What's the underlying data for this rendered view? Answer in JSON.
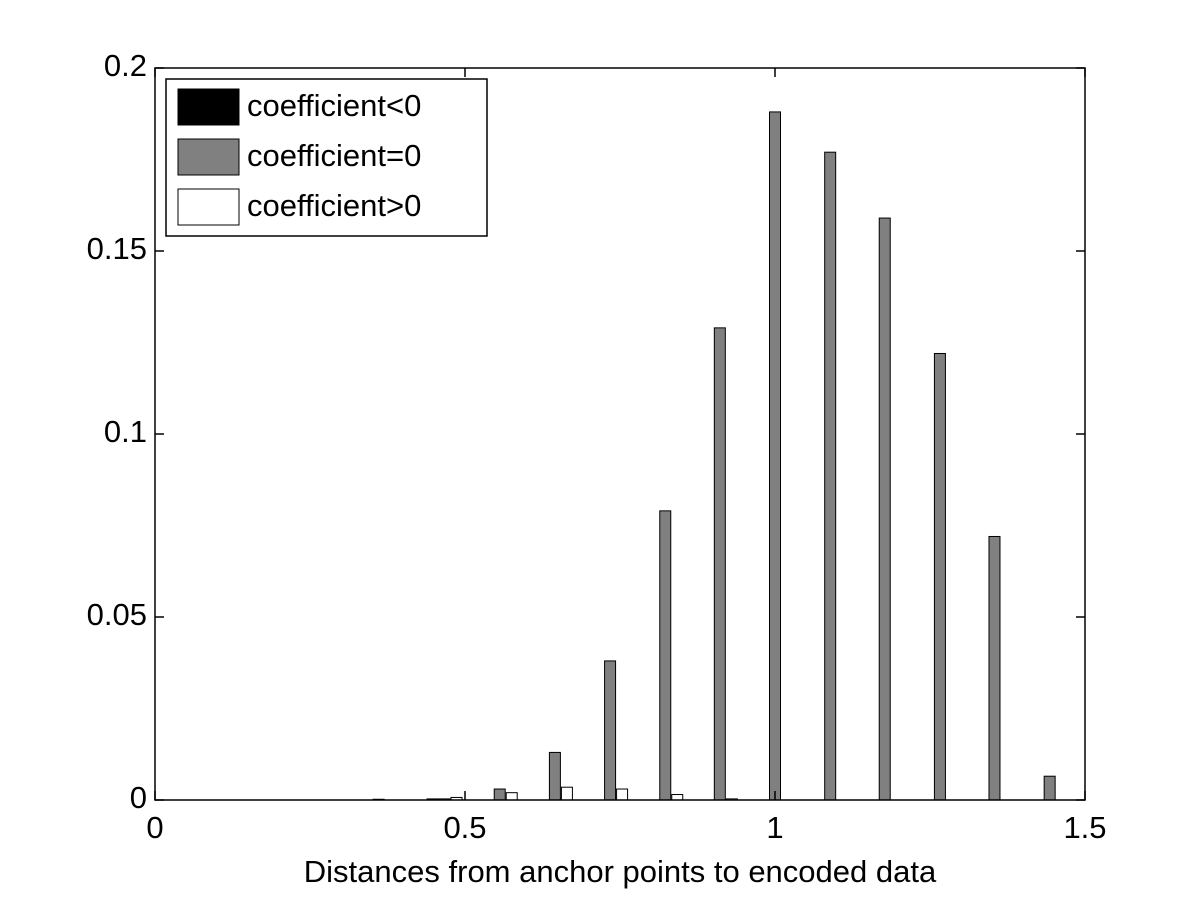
{
  "chart_data": {
    "type": "bar",
    "xlabel": "Distances from anchor points to encoded data",
    "x": [
      0.38,
      0.467,
      0.556,
      0.645,
      0.734,
      0.823,
      0.911,
      1.0,
      1.089,
      1.177,
      1.266,
      1.354,
      1.443
    ],
    "series": [
      {
        "name": "coefficient<0",
        "color": "#000000",
        "values": [
          0.0002,
          0.0003,
          0,
          0,
          0,
          0,
          0,
          0,
          0,
          0,
          0,
          0,
          0
        ]
      },
      {
        "name": "coefficient=0",
        "color": "#808080",
        "values": [
          0,
          0.0003,
          0.003,
          0.013,
          0.038,
          0.079,
          0.129,
          0.188,
          0.177,
          0.159,
          0.122,
          0.072,
          0.0065
        ]
      },
      {
        "name": "coefficient>0",
        "color": "#ffffff",
        "values": [
          0,
          0.0007,
          0.002,
          0.0035,
          0.003,
          0.0015,
          0.0003,
          0,
          0,
          0,
          0,
          0,
          0
        ]
      }
    ],
    "xlim": [
      0,
      1.5
    ],
    "xticks": [
      0,
      0.5,
      1,
      1.5
    ],
    "ylim": [
      0,
      0.2
    ],
    "yticks": [
      0,
      0.05,
      0.1,
      0.15,
      0.2
    ],
    "grid": false,
    "legend": "upper left"
  }
}
